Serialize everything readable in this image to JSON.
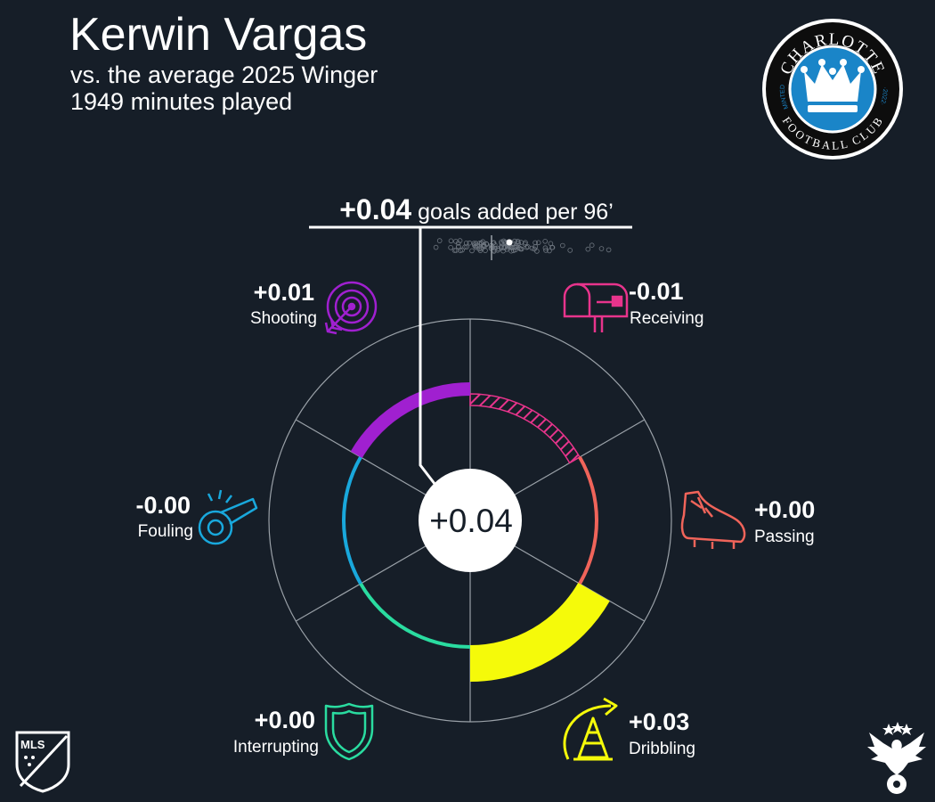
{
  "header": {
    "title": "Kerwin Vargas",
    "subtitle": "vs. the average 2025 Winger",
    "minutes": "1949 minutes played"
  },
  "headline": {
    "value": "+0.04",
    "label": "goals added per 96’"
  },
  "center_value": "+0.04",
  "logos": {
    "club": {
      "top_text": "CHARLOTTE",
      "bottom_text": "FOOTBALL CLUB",
      "left_text": "MINTED",
      "right_text": "·2022·",
      "color": "#1a85c8"
    },
    "league": {
      "text": "MLS"
    }
  },
  "chart_data": {
    "type": "radial-bar",
    "unit": "goals added per 96’",
    "total": 0.04,
    "categories": [
      {
        "label": "Receiving",
        "display": "-0.01",
        "value": -0.01,
        "color": "#e8348c",
        "icon": "mailbox-icon"
      },
      {
        "label": "Passing",
        "display": "+0.00",
        "value": 0.0,
        "color": "#f0645a",
        "icon": "cleat-icon"
      },
      {
        "label": "Dribbling",
        "display": "+0.03",
        "value": 0.03,
        "color": "#f5fa0a",
        "icon": "cone-arrow-icon"
      },
      {
        "label": "Interrupting",
        "display": "+0.00",
        "value": 0.0,
        "color": "#2adca0",
        "icon": "shield-icon"
      },
      {
        "label": "Fouling",
        "display": "-0.00",
        "value": -0.0,
        "color": "#19a8dc",
        "icon": "whistle-icon"
      },
      {
        "label": "Shooting",
        "display": "+0.01",
        "value": 0.01,
        "color": "#a020d0",
        "icon": "target-icon"
      }
    ],
    "distribution": {
      "description": "other wingers' goals added per 96",
      "highlight": 0.04
    }
  }
}
